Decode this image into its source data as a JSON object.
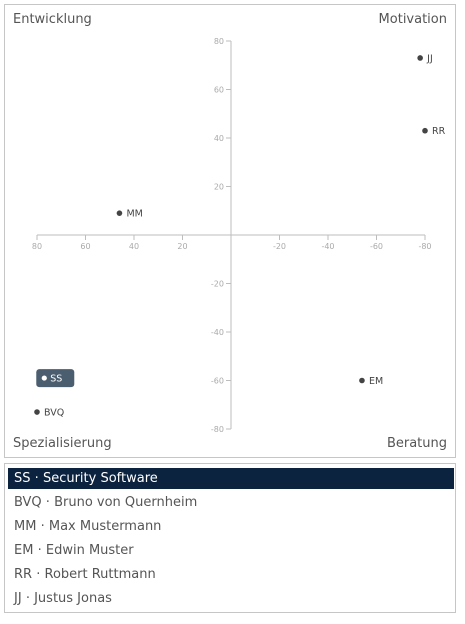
{
  "quadrants": {
    "top_left": "Entwicklung",
    "top_right": "Motivation",
    "bottom_left": "Spezialisierung",
    "bottom_right": "Beratung"
  },
  "colors": {
    "axis": "#bdbdbd",
    "tick_label": "#aaaaaa",
    "point": "#444444",
    "selected_badge": "#4a5e70",
    "selected_row": "#0c2340"
  },
  "chart_data": {
    "type": "scatter",
    "x_ticks": [
      80,
      60,
      40,
      20,
      -20,
      -40,
      -60,
      -80
    ],
    "y_ticks": [
      80,
      60,
      40,
      20,
      -20,
      -40,
      -60,
      -80
    ],
    "xlim": [
      80,
      -80
    ],
    "ylim": [
      -80,
      80
    ],
    "points": [
      {
        "label": "JJ",
        "x": -78,
        "y": 73,
        "selected": false
      },
      {
        "label": "RR",
        "x": -80,
        "y": 43,
        "selected": false
      },
      {
        "label": "MM",
        "x": 46,
        "y": 9,
        "selected": false
      },
      {
        "label": "SS",
        "x": 77,
        "y": -59,
        "selected": true
      },
      {
        "label": "EM",
        "x": -54,
        "y": -60,
        "selected": false
      },
      {
        "label": "BVQ",
        "x": 80,
        "y": -73,
        "selected": false
      }
    ]
  },
  "list": {
    "items": [
      {
        "abbr": "SS",
        "separator": "·",
        "name": "Security Software",
        "selected": true
      },
      {
        "abbr": "BVQ",
        "separator": "·",
        "name": "Bruno von Quernheim",
        "selected": false
      },
      {
        "abbr": "MM",
        "separator": "·",
        "name": "Max Mustermann",
        "selected": false
      },
      {
        "abbr": "EM",
        "separator": "·",
        "name": "Edwin Muster",
        "selected": false
      },
      {
        "abbr": "RR",
        "separator": "·",
        "name": "Robert Ruttmann",
        "selected": false
      },
      {
        "abbr": "JJ",
        "separator": "·",
        "name": "Justus Jonas",
        "selected": false
      }
    ]
  }
}
